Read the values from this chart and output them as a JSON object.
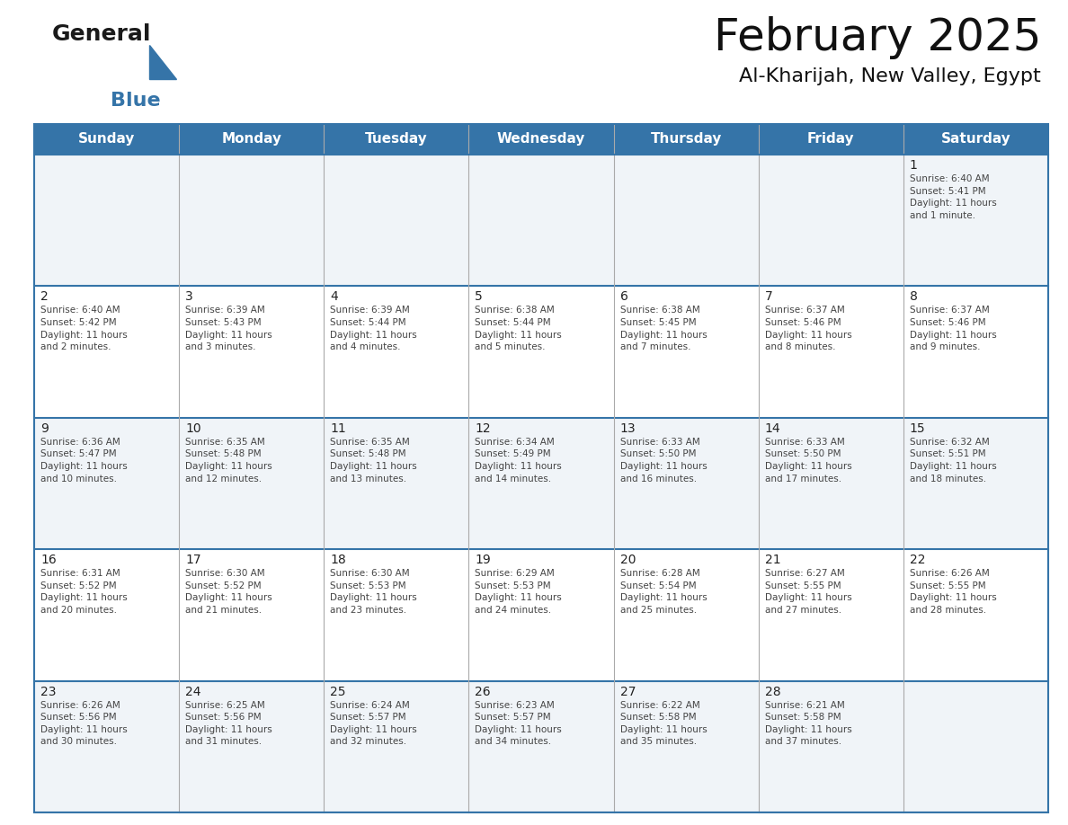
{
  "title": "February 2025",
  "subtitle": "Al-Kharijah, New Valley, Egypt",
  "header_bg_color": "#3574a8",
  "header_text_color": "#ffffff",
  "cell_bg_even": "#f0f4f8",
  "cell_bg_odd": "#ffffff",
  "day_number_color": "#222222",
  "cell_text_color": "#444444",
  "border_color": "#3574a8",
  "separator_color": "#3574a8",
  "vline_color": "#aaaaaa",
  "days_of_week": [
    "Sunday",
    "Monday",
    "Tuesday",
    "Wednesday",
    "Thursday",
    "Friday",
    "Saturday"
  ],
  "title_fontsize": 36,
  "subtitle_fontsize": 16,
  "header_fontsize": 11,
  "day_num_fontsize": 10,
  "cell_text_fontsize": 7.5,
  "weeks": [
    [
      {
        "day": null,
        "text": ""
      },
      {
        "day": null,
        "text": ""
      },
      {
        "day": null,
        "text": ""
      },
      {
        "day": null,
        "text": ""
      },
      {
        "day": null,
        "text": ""
      },
      {
        "day": null,
        "text": ""
      },
      {
        "day": 1,
        "text": "Sunrise: 6:40 AM\nSunset: 5:41 PM\nDaylight: 11 hours\nand 1 minute."
      }
    ],
    [
      {
        "day": 2,
        "text": "Sunrise: 6:40 AM\nSunset: 5:42 PM\nDaylight: 11 hours\nand 2 minutes."
      },
      {
        "day": 3,
        "text": "Sunrise: 6:39 AM\nSunset: 5:43 PM\nDaylight: 11 hours\nand 3 minutes."
      },
      {
        "day": 4,
        "text": "Sunrise: 6:39 AM\nSunset: 5:44 PM\nDaylight: 11 hours\nand 4 minutes."
      },
      {
        "day": 5,
        "text": "Sunrise: 6:38 AM\nSunset: 5:44 PM\nDaylight: 11 hours\nand 5 minutes."
      },
      {
        "day": 6,
        "text": "Sunrise: 6:38 AM\nSunset: 5:45 PM\nDaylight: 11 hours\nand 7 minutes."
      },
      {
        "day": 7,
        "text": "Sunrise: 6:37 AM\nSunset: 5:46 PM\nDaylight: 11 hours\nand 8 minutes."
      },
      {
        "day": 8,
        "text": "Sunrise: 6:37 AM\nSunset: 5:46 PM\nDaylight: 11 hours\nand 9 minutes."
      }
    ],
    [
      {
        "day": 9,
        "text": "Sunrise: 6:36 AM\nSunset: 5:47 PM\nDaylight: 11 hours\nand 10 minutes."
      },
      {
        "day": 10,
        "text": "Sunrise: 6:35 AM\nSunset: 5:48 PM\nDaylight: 11 hours\nand 12 minutes."
      },
      {
        "day": 11,
        "text": "Sunrise: 6:35 AM\nSunset: 5:48 PM\nDaylight: 11 hours\nand 13 minutes."
      },
      {
        "day": 12,
        "text": "Sunrise: 6:34 AM\nSunset: 5:49 PM\nDaylight: 11 hours\nand 14 minutes."
      },
      {
        "day": 13,
        "text": "Sunrise: 6:33 AM\nSunset: 5:50 PM\nDaylight: 11 hours\nand 16 minutes."
      },
      {
        "day": 14,
        "text": "Sunrise: 6:33 AM\nSunset: 5:50 PM\nDaylight: 11 hours\nand 17 minutes."
      },
      {
        "day": 15,
        "text": "Sunrise: 6:32 AM\nSunset: 5:51 PM\nDaylight: 11 hours\nand 18 minutes."
      }
    ],
    [
      {
        "day": 16,
        "text": "Sunrise: 6:31 AM\nSunset: 5:52 PM\nDaylight: 11 hours\nand 20 minutes."
      },
      {
        "day": 17,
        "text": "Sunrise: 6:30 AM\nSunset: 5:52 PM\nDaylight: 11 hours\nand 21 minutes."
      },
      {
        "day": 18,
        "text": "Sunrise: 6:30 AM\nSunset: 5:53 PM\nDaylight: 11 hours\nand 23 minutes."
      },
      {
        "day": 19,
        "text": "Sunrise: 6:29 AM\nSunset: 5:53 PM\nDaylight: 11 hours\nand 24 minutes."
      },
      {
        "day": 20,
        "text": "Sunrise: 6:28 AM\nSunset: 5:54 PM\nDaylight: 11 hours\nand 25 minutes."
      },
      {
        "day": 21,
        "text": "Sunrise: 6:27 AM\nSunset: 5:55 PM\nDaylight: 11 hours\nand 27 minutes."
      },
      {
        "day": 22,
        "text": "Sunrise: 6:26 AM\nSunset: 5:55 PM\nDaylight: 11 hours\nand 28 minutes."
      }
    ],
    [
      {
        "day": 23,
        "text": "Sunrise: 6:26 AM\nSunset: 5:56 PM\nDaylight: 11 hours\nand 30 minutes."
      },
      {
        "day": 24,
        "text": "Sunrise: 6:25 AM\nSunset: 5:56 PM\nDaylight: 11 hours\nand 31 minutes."
      },
      {
        "day": 25,
        "text": "Sunrise: 6:24 AM\nSunset: 5:57 PM\nDaylight: 11 hours\nand 32 minutes."
      },
      {
        "day": 26,
        "text": "Sunrise: 6:23 AM\nSunset: 5:57 PM\nDaylight: 11 hours\nand 34 minutes."
      },
      {
        "day": 27,
        "text": "Sunrise: 6:22 AM\nSunset: 5:58 PM\nDaylight: 11 hours\nand 35 minutes."
      },
      {
        "day": 28,
        "text": "Sunrise: 6:21 AM\nSunset: 5:58 PM\nDaylight: 11 hours\nand 37 minutes."
      },
      {
        "day": null,
        "text": ""
      }
    ]
  ]
}
